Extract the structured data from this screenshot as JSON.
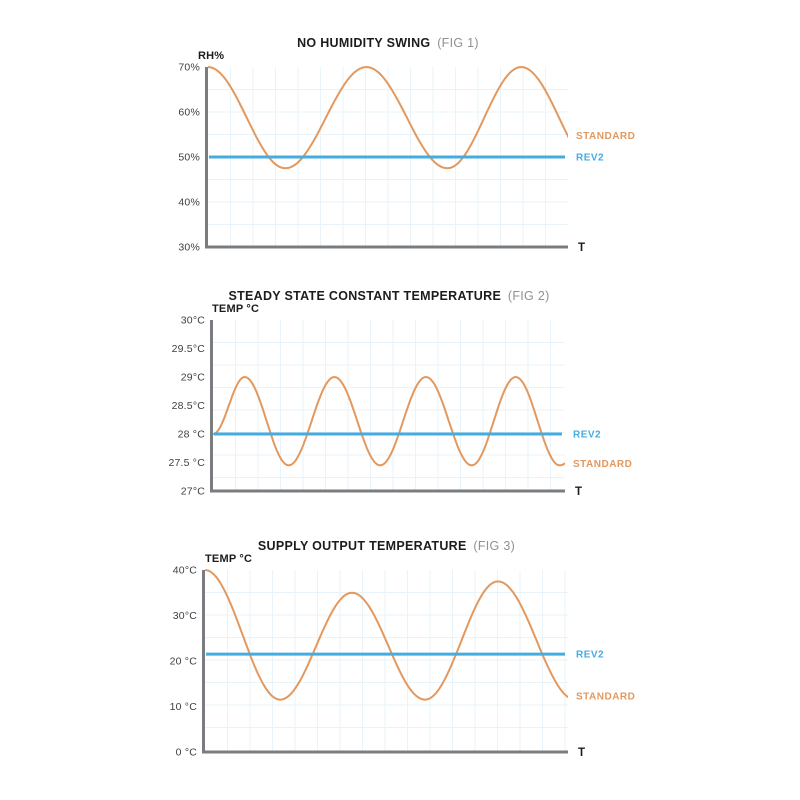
{
  "page": {
    "background": "#ffffff"
  },
  "colors": {
    "standard": "#E3985E",
    "rev2": "#45ACE0",
    "axis": "#7B7C7F",
    "grid": "#E9F4FA",
    "title": "#1C1C1E",
    "fig_label": "#8F9194",
    "tick": "#3F4042"
  },
  "chart_data": [
    {
      "type": "line",
      "title": "NO HUMIDITY SWING",
      "fig_label": "(FIG 1)",
      "ylabel": "RH%",
      "xlabel": "T",
      "ylim": [
        30,
        70
      ],
      "grid": true,
      "legend_position": "right",
      "yticks": [
        {
          "value": 70,
          "label": "70%"
        },
        {
          "value": 60,
          "label": "60%"
        },
        {
          "value": 50,
          "label": "50%"
        },
        {
          "value": 40,
          "label": "40%"
        },
        {
          "value": 30,
          "label": "30%"
        }
      ],
      "series": [
        {
          "name": "STANDARD",
          "kind": "wave",
          "color_key": "standard",
          "keypoints": [
            [
              0,
              70
            ],
            [
              0.215,
              47.5
            ],
            [
              0.44,
              70
            ],
            [
              0.665,
              47.5
            ],
            [
              0.87,
              70
            ],
            [
              1.08,
              47.5
            ]
          ]
        },
        {
          "name": "REV2",
          "kind": "constant",
          "color_key": "rev2",
          "value": 50
        }
      ]
    },
    {
      "type": "line",
      "title": "STEADY STATE CONSTANT TEMPERATURE",
      "fig_label": "(FIG 2)",
      "ylabel": "TEMP °C",
      "xlabel": "T",
      "ylim": [
        27,
        30
      ],
      "grid": true,
      "legend_position": "right",
      "yticks": [
        {
          "value": 30,
          "label": "30°C"
        },
        {
          "value": 29.5,
          "label": "29.5°C"
        },
        {
          "value": 29,
          "label": "29°C"
        },
        {
          "value": 28.5,
          "label": "28.5°C"
        },
        {
          "value": 28,
          "label": "28 °C"
        },
        {
          "value": 27.5,
          "label": "27.5 °C"
        },
        {
          "value": 27,
          "label": "27°C"
        }
      ],
      "series": [
        {
          "name": "STANDARD",
          "kind": "wave",
          "color_key": "standard",
          "keypoints": [
            [
              0,
              28
            ],
            [
              0.09,
              29
            ],
            [
              0.215,
              27.45
            ],
            [
              0.345,
              29
            ],
            [
              0.475,
              27.45
            ],
            [
              0.605,
              29
            ],
            [
              0.735,
              27.45
            ],
            [
              0.86,
              29
            ],
            [
              0.985,
              27.45
            ],
            [
              1.01,
              27.5
            ]
          ]
        },
        {
          "name": "REV2",
          "kind": "constant",
          "color_key": "rev2",
          "value": 28
        }
      ]
    },
    {
      "type": "line",
      "title": "SUPPLY OUTPUT TEMPERATURE",
      "fig_label": "(FIG 3)",
      "ylabel": "TEMP °C",
      "xlabel": "T",
      "ylim": [
        0,
        40
      ],
      "grid": true,
      "legend_position": "right",
      "yticks": [
        {
          "value": 40,
          "label": "40°C"
        },
        {
          "value": 30,
          "label": "30°C"
        },
        {
          "value": 20,
          "label": "20 °C"
        },
        {
          "value": 10,
          "label": "10 °C"
        },
        {
          "value": 0,
          "label": "0 °C"
        }
      ],
      "series": [
        {
          "name": "STANDARD",
          "kind": "wave",
          "color_key": "standard",
          "keypoints": [
            [
              0,
              40
            ],
            [
              0.207,
              11.5
            ],
            [
              0.405,
              35
            ],
            [
              0.606,
              11.5
            ],
            [
              0.807,
              37.5
            ],
            [
              1.02,
              11.5
            ]
          ]
        },
        {
          "name": "REV2",
          "kind": "constant",
          "color_key": "rev2",
          "value": 21.5
        }
      ]
    }
  ]
}
